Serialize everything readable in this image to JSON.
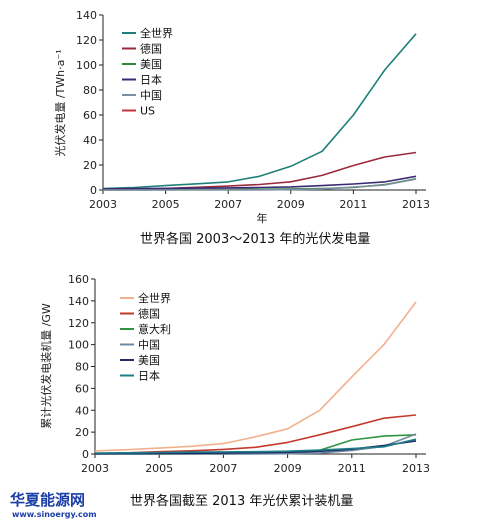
{
  "colors": {
    "world": "#1f7f79",
    "germany": "#9a2a3c",
    "usa": "#2e8a3f",
    "japan": "#3b2a74",
    "china": "#7e8ea1",
    "us_series": "#c6343a",
    "world2": "#f2b18d",
    "germany2": "#c33a2e",
    "italy2": "#2f9443",
    "china2": "#6f8aa0",
    "usa2": "#1f2a66",
    "japan2": "#1f7e86"
  },
  "logo": {
    "cn": "华夏能源网",
    "url": "www.sinoergy.com"
  },
  "chart_data": [
    {
      "type": "line",
      "title": "世界各国 2003～2013 年的光伏发电量",
      "xlabel": "年",
      "ylabel": "光伏发电量 /TWh·a⁻¹",
      "xlim": [
        2003,
        2013
      ],
      "ylim": [
        0,
        140
      ],
      "xticks": [
        "2003",
        "2005",
        "2007",
        "2009",
        "2011",
        "2013"
      ],
      "yticks": [
        "0",
        "20",
        "40",
        "60",
        "80",
        "100",
        "120",
        "140"
      ],
      "x": [
        2003,
        2004,
        2005,
        2006,
        2007,
        2008,
        2009,
        2010,
        2011,
        2012,
        2013
      ],
      "grid": false,
      "legend_position": "top-left",
      "series": [
        {
          "name": "全世界",
          "color_key": "world",
          "values": [
            1.2,
            2.0,
            3.5,
            5.0,
            6.5,
            11.0,
            19.0,
            31.0,
            60.0,
            96.0,
            125.0
          ]
        },
        {
          "name": "德国",
          "color_key": "germany",
          "values": [
            0.3,
            0.6,
            1.3,
            2.2,
            3.1,
            4.4,
            6.6,
            11.7,
            19.6,
            26.4,
            30.0
          ]
        },
        {
          "name": "美国",
          "color_key": "usa",
          "values": [
            0.1,
            0.1,
            0.2,
            0.3,
            0.4,
            0.6,
            0.9,
            1.2,
            2.0,
            4.3,
            9.0
          ]
        },
        {
          "name": "日本",
          "color_key": "japan",
          "values": [
            0.9,
            1.1,
            1.3,
            1.5,
            1.7,
            2.0,
            2.5,
            3.5,
            4.8,
            6.5,
            11.0
          ]
        },
        {
          "name": "中国",
          "color_key": "china",
          "values": [
            0.0,
            0.0,
            0.0,
            0.1,
            0.1,
            0.1,
            0.3,
            0.7,
            2.3,
            4.0,
            8.7
          ]
        },
        {
          "name": "US",
          "color_key": "us_series",
          "values": [
            0.0,
            0.0,
            0.0,
            0.0,
            0.0,
            0.0,
            0.0,
            0.0,
            0.0,
            0.0,
            0.0
          ],
          "plotted": false
        }
      ]
    },
    {
      "type": "line",
      "title": "世界各国截至 2013 年光伏累计装机量",
      "xlabel": "",
      "ylabel": "累计光伏发电装机量 /GW",
      "xlim": [
        2003,
        2013
      ],
      "ylim": [
        0,
        160
      ],
      "xticks": [
        "2003",
        "2005",
        "2007",
        "2009",
        "2011",
        "2013"
      ],
      "yticks": [
        "0",
        "20",
        "40",
        "60",
        "80",
        "100",
        "120",
        "140",
        "160"
      ],
      "x": [
        2003,
        2004,
        2005,
        2006,
        2007,
        2008,
        2009,
        2010,
        2011,
        2012,
        2013
      ],
      "grid": false,
      "legend_position": "top-left",
      "series": [
        {
          "name": "全世界",
          "color_key": "world2",
          "values": [
            2.8,
            3.9,
            5.4,
            7.0,
            9.5,
            15.7,
            23.0,
            40.0,
            70.5,
            100.0,
            139.0
          ]
        },
        {
          "name": "德国",
          "color_key": "germany2",
          "values": [
            0.4,
            1.1,
            2.1,
            2.9,
            4.2,
            6.1,
            10.6,
            17.6,
            25.0,
            32.7,
            35.7
          ]
        },
        {
          "name": "意大利",
          "color_key": "italy2",
          "values": [
            0.0,
            0.0,
            0.0,
            0.1,
            0.1,
            0.5,
            1.2,
            3.5,
            12.8,
            16.4,
            17.6
          ]
        },
        {
          "name": "中国",
          "color_key": "china2",
          "values": [
            0.0,
            0.1,
            0.1,
            0.1,
            0.1,
            0.1,
            0.3,
            0.8,
            3.3,
            7.0,
            18.3
          ]
        },
        {
          "name": "美国",
          "color_key": "usa2",
          "values": [
            0.3,
            0.4,
            0.5,
            0.6,
            0.8,
            1.2,
            1.6,
            2.5,
            4.4,
            7.8,
            12.0
          ]
        },
        {
          "name": "日本",
          "color_key": "japan2",
          "values": [
            0.9,
            1.1,
            1.4,
            1.7,
            1.9,
            2.1,
            2.6,
            3.6,
            4.9,
            6.6,
            13.6
          ]
        }
      ]
    }
  ]
}
